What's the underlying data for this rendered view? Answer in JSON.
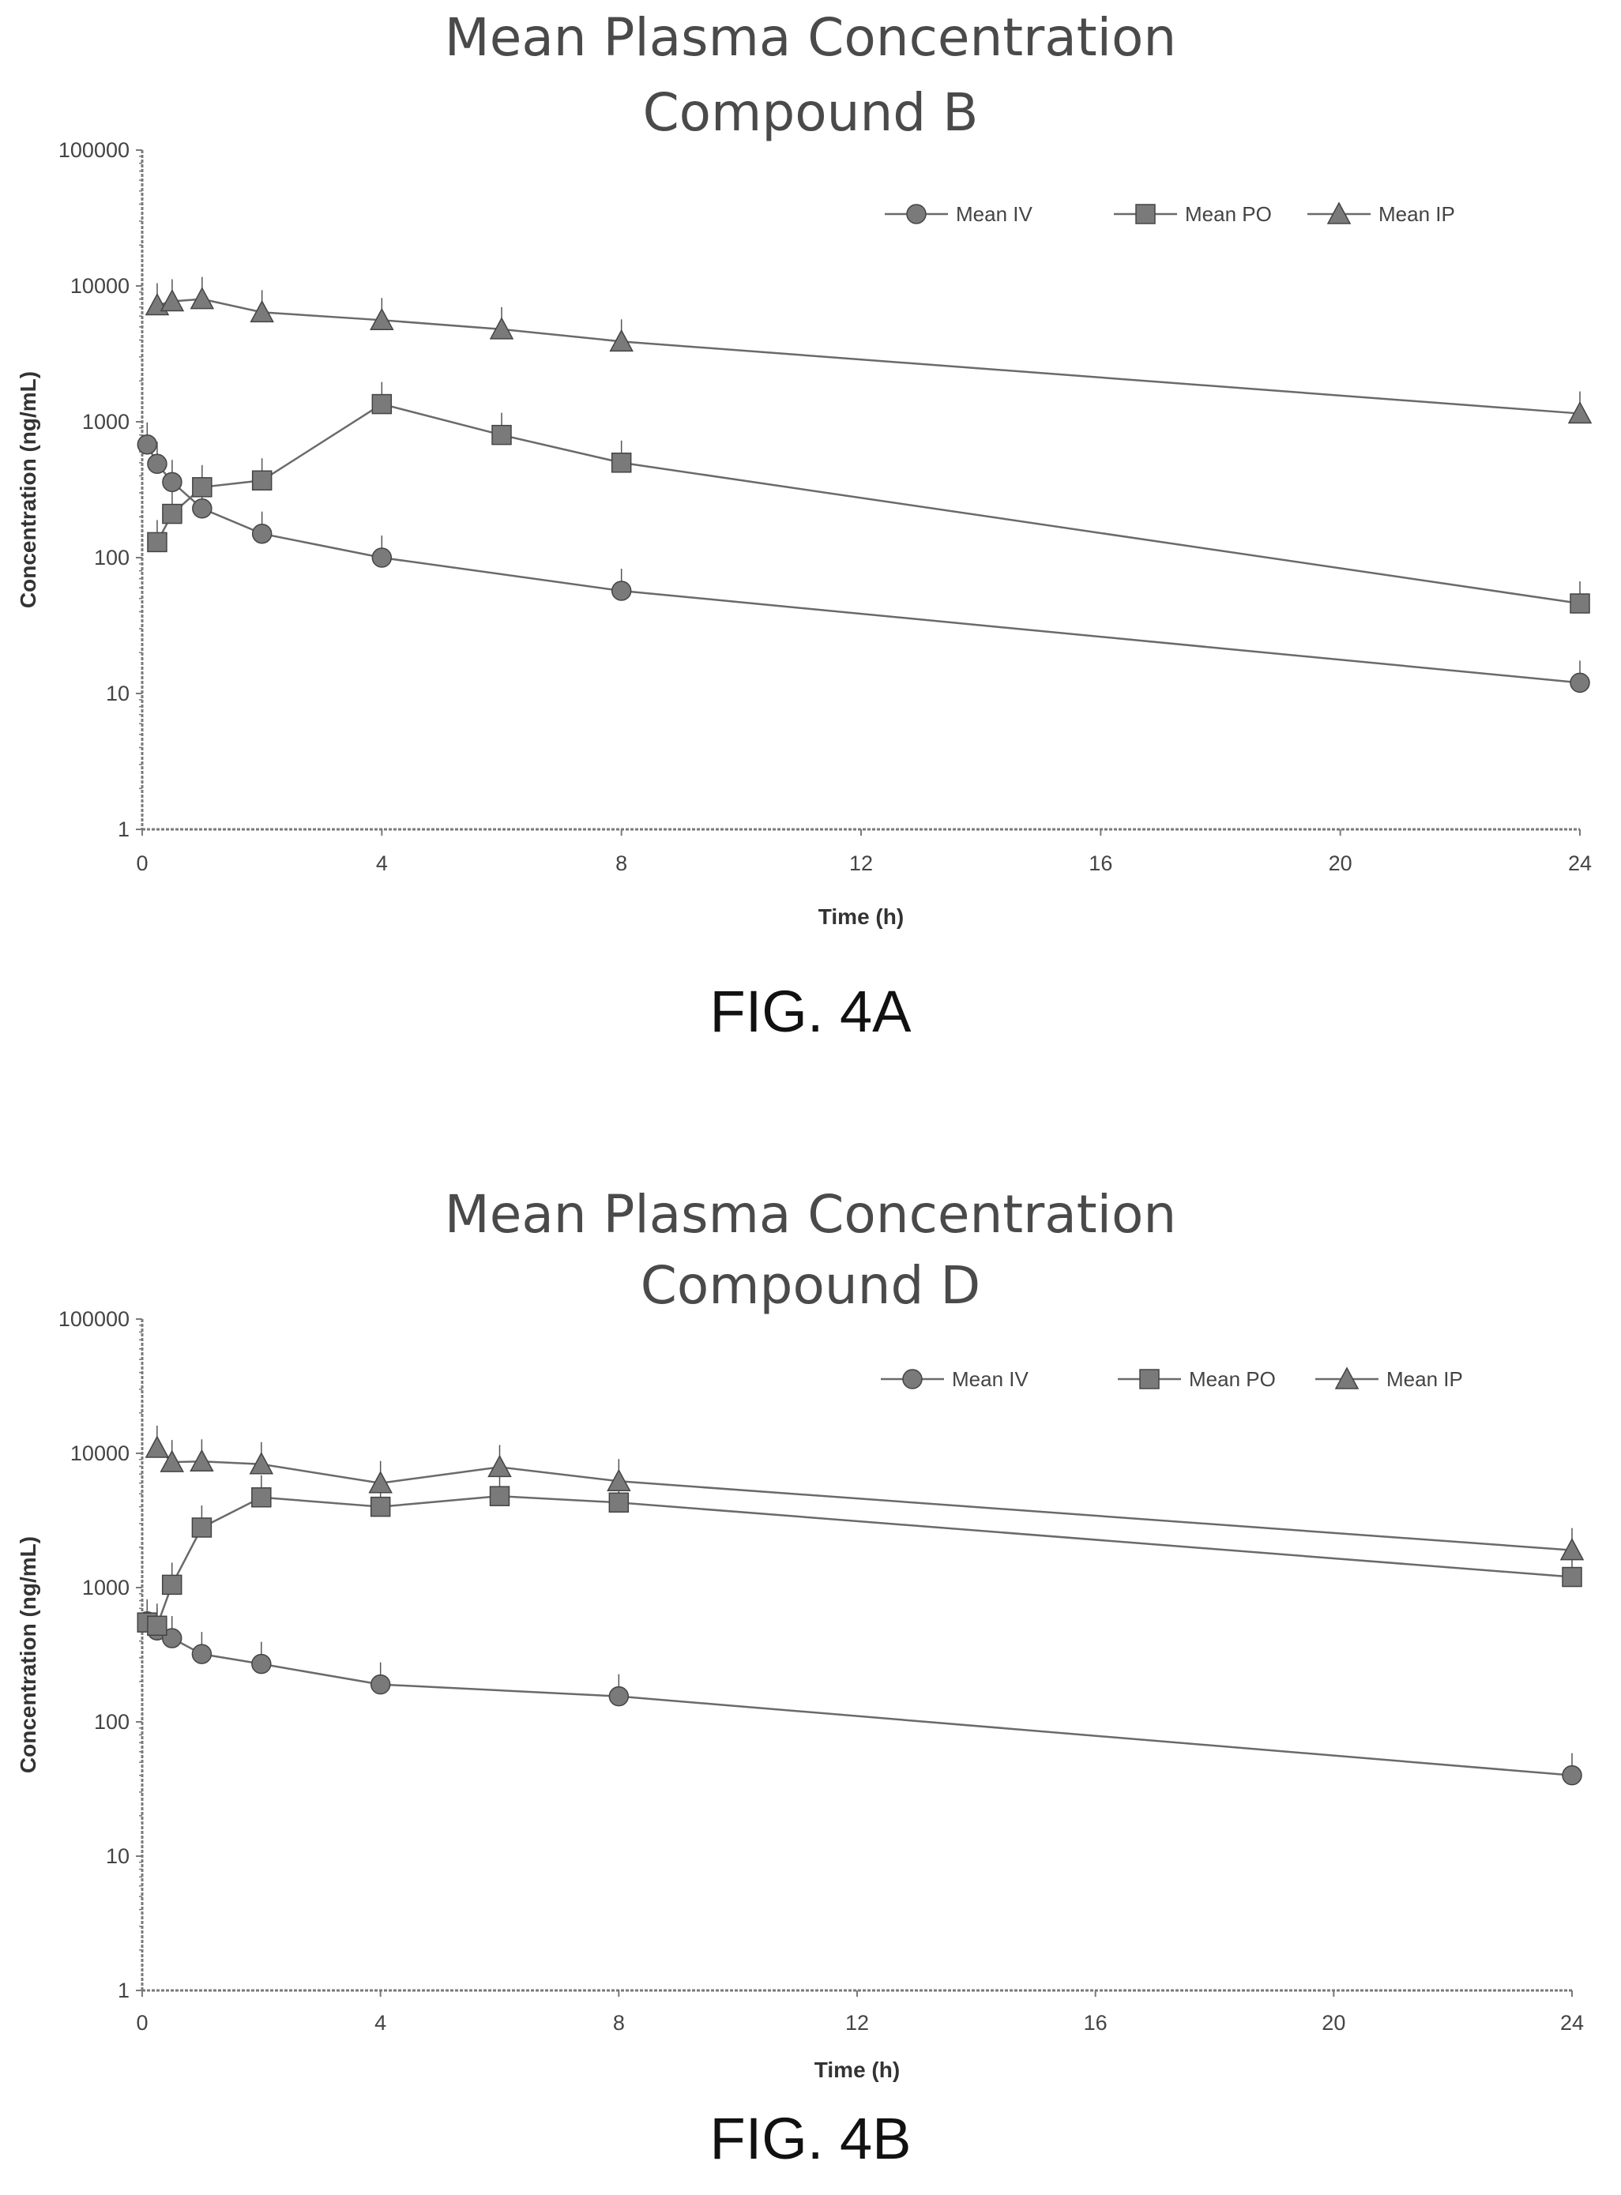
{
  "chart_data": [
    {
      "type": "line",
      "title": "Mean Plasma Concentration",
      "subtitle": "Compound B",
      "xlabel": "Time (h)",
      "ylabel": "Concentration (ng/mL)",
      "xlim": [
        0,
        24
      ],
      "ylim": [
        1,
        100000
      ],
      "yscale": "log",
      "xticks": [
        "0",
        "4",
        "8",
        "12",
        "16",
        "20",
        "24"
      ],
      "yticks": [
        "1",
        "10",
        "100",
        "1000",
        "10000",
        "100000"
      ],
      "legend": "top-right",
      "grid": false,
      "series": [
        {
          "name": "Mean IV",
          "marker": "circle",
          "x": [
            0.083,
            0.25,
            0.5,
            1,
            2,
            4,
            8,
            24
          ],
          "y": [
            680,
            490,
            360,
            230,
            150,
            100,
            57,
            12
          ]
        },
        {
          "name": "Mean PO",
          "marker": "square",
          "x": [
            0.25,
            0.5,
            1,
            2,
            4,
            6,
            8,
            24
          ],
          "y": [
            130,
            210,
            330,
            370,
            1350,
            800,
            500,
            46
          ]
        },
        {
          "name": "Mean IP",
          "marker": "triangle",
          "x": [
            0.25,
            0.5,
            1,
            2,
            4,
            6,
            8,
            24
          ],
          "y": [
            7200,
            7700,
            8000,
            6400,
            5600,
            4800,
            3900,
            1150
          ]
        }
      ],
      "figure_label": "FIG. 4A"
    },
    {
      "type": "line",
      "title": "Mean Plasma Concentration",
      "subtitle": "Compound D",
      "xlabel": "Time (h)",
      "ylabel": "Concentration (ng/mL)",
      "xlim": [
        0,
        24
      ],
      "ylim": [
        1,
        100000
      ],
      "yscale": "log",
      "xticks": [
        "0",
        "4",
        "8",
        "12",
        "16",
        "20",
        "24"
      ],
      "yticks": [
        "1",
        "10",
        "100",
        "1000",
        "10000",
        "100000"
      ],
      "legend": "top-right",
      "grid": false,
      "series": [
        {
          "name": "Mean IV",
          "marker": "circle",
          "x": [
            0.083,
            0.25,
            0.5,
            1,
            2,
            4,
            8,
            24
          ],
          "y": [
            560,
            480,
            420,
            320,
            270,
            190,
            155,
            40
          ]
        },
        {
          "name": "Mean PO",
          "marker": "square",
          "x": [
            0.083,
            0.25,
            0.5,
            1,
            2,
            4,
            6,
            8,
            24
          ],
          "y": [
            550,
            520,
            1050,
            2800,
            4700,
            4000,
            4800,
            4300,
            1200
          ]
        },
        {
          "name": "Mean IP",
          "marker": "triangle",
          "x": [
            0.25,
            0.5,
            1,
            2,
            4,
            6,
            8,
            24
          ],
          "y": [
            11000,
            8600,
            8700,
            8300,
            6000,
            7900,
            6200,
            1900
          ]
        }
      ],
      "figure_label": "FIG. 4B"
    }
  ],
  "colors": {
    "line": "#6a6a6a",
    "marker": "#7a7a7a",
    "axis": "#7a7a7a",
    "title": "#4a4a4a"
  }
}
